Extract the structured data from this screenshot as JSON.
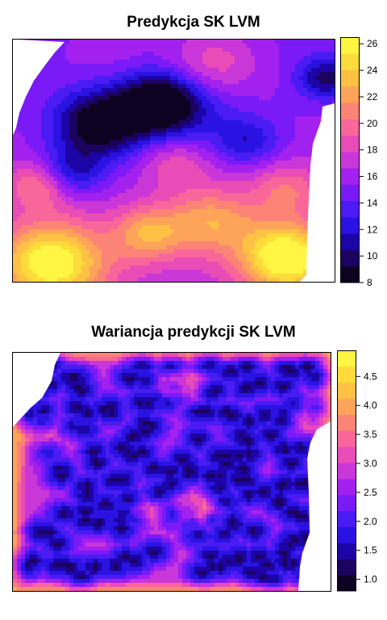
{
  "chart_data": [
    {
      "type": "heatmap",
      "title": "Predykcja SK LVM",
      "xlabel": "",
      "ylabel": "",
      "legend_position": "right",
      "zlim": [
        8,
        26.5
      ],
      "legend_ticks": [
        "8",
        "10",
        "12",
        "14",
        "16",
        "18",
        "20",
        "22",
        "24",
        "26"
      ],
      "legend_tick_values": [
        8,
        10,
        12,
        14,
        16,
        18,
        20,
        22,
        24,
        26
      ],
      "palette": [
        "#0D0221",
        "#1B0360",
        "#1D04A6",
        "#2A13E2",
        "#4A1BF2",
        "#7A1AF7",
        "#A321EE",
        "#C937D9",
        "#E94CB7",
        "#F8669A",
        "#FC8477",
        "#FDA35A",
        "#FDC144",
        "#FDDB3A",
        "#FFF543"
      ],
      "grid": false
    },
    {
      "type": "heatmap",
      "title": "Wariancja predykcji SK LVM",
      "xlabel": "",
      "ylabel": "",
      "legend_position": "right",
      "zlim": [
        0.8,
        4.95
      ],
      "legend_ticks": [
        "1.0",
        "1.5",
        "2.0",
        "2.5",
        "3.0",
        "3.5",
        "4.0",
        "4.5"
      ],
      "legend_tick_values": [
        1.0,
        1.5,
        2.0,
        2.5,
        3.0,
        3.5,
        4.0,
        4.5
      ],
      "palette": [
        "#0D0221",
        "#1B0360",
        "#1D04A6",
        "#2A13E2",
        "#4A1BF2",
        "#7A1AF7",
        "#A321EE",
        "#C937D9",
        "#E94CB7",
        "#F8669A",
        "#FC8477",
        "#FDA35A",
        "#FDC144",
        "#FDDB3A",
        "#FFF543"
      ],
      "grid": false
    }
  ]
}
